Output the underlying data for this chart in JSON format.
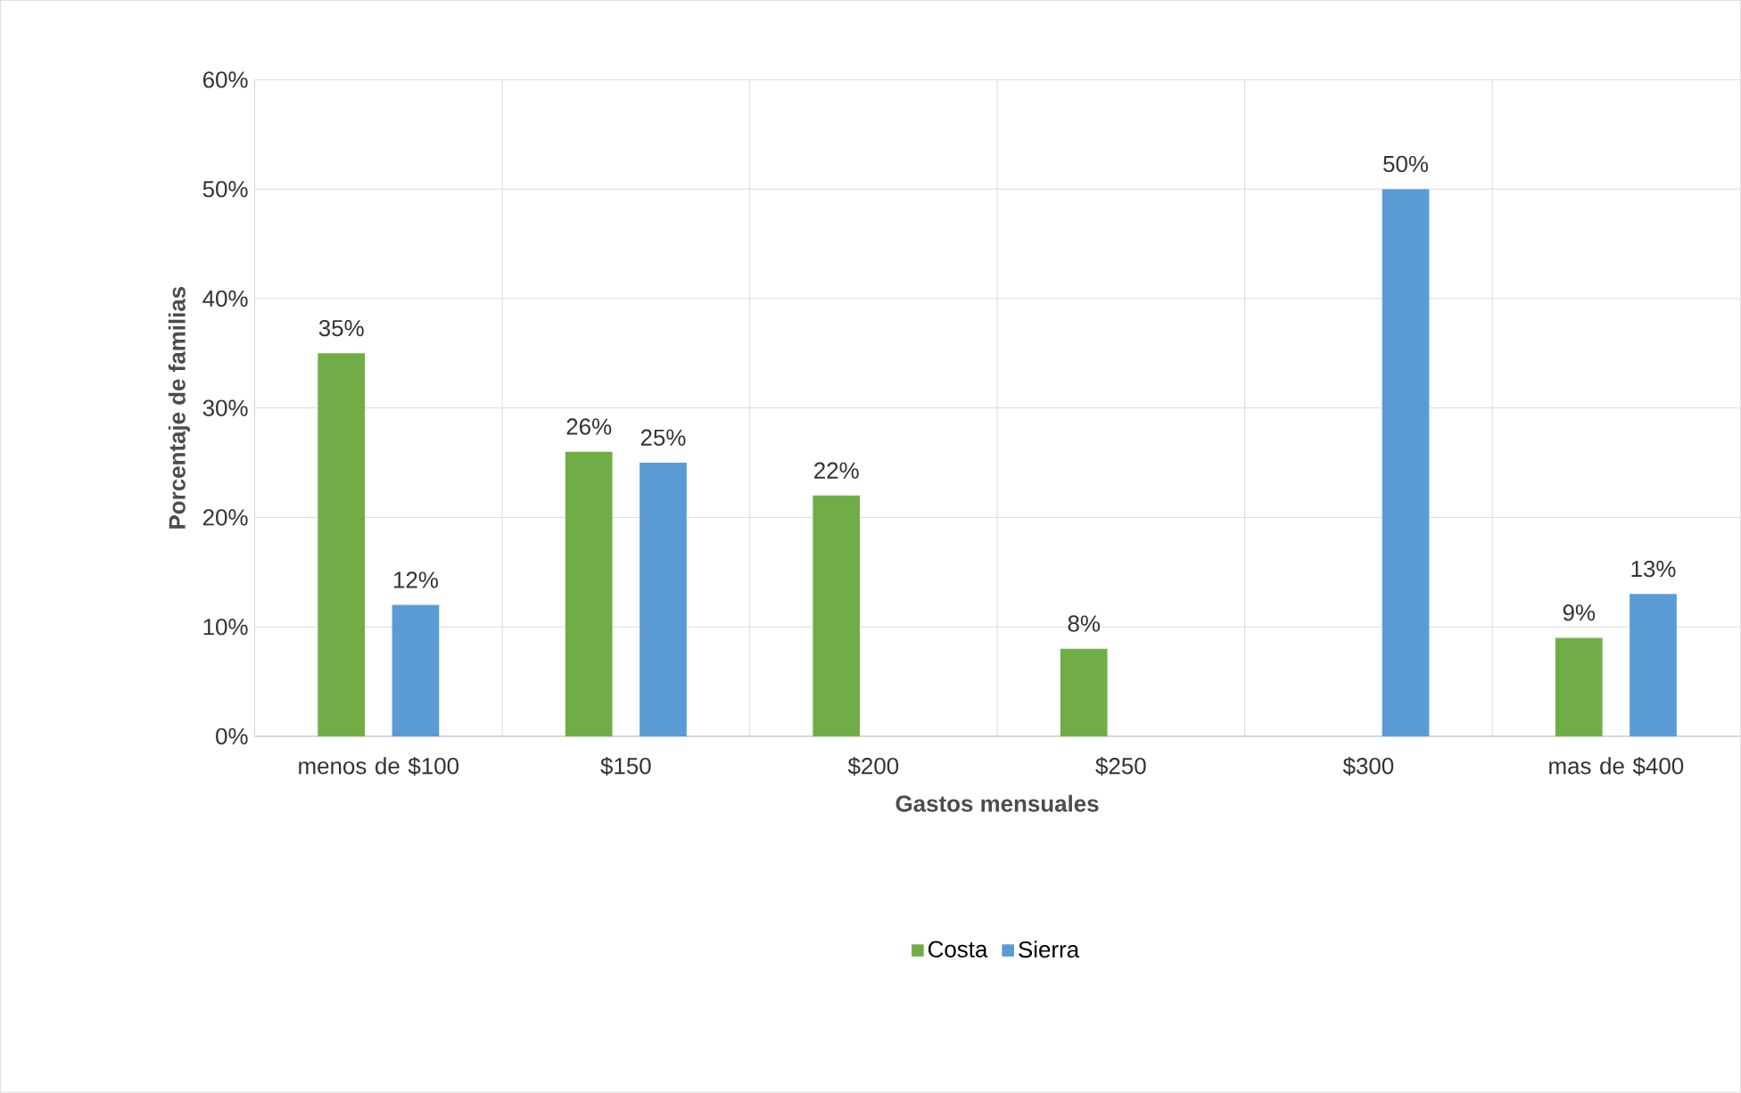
{
  "chart_data": {
    "type": "bar",
    "xlabel": "Gastos mensuales",
    "ylabel": "Porcentaje de familias",
    "categories": [
      "menos de $100",
      "$150",
      "$200",
      "$250",
      "$300",
      "mas de $400"
    ],
    "series": [
      {
        "name": "Costa",
        "color": "#70ad47",
        "values": [
          35,
          26,
          22,
          8,
          null,
          9
        ],
        "value_labels": [
          "35%",
          "26%",
          "22%",
          "8%",
          null,
          "9%"
        ]
      },
      {
        "name": "Sierra",
        "color": "#5b9bd5",
        "values": [
          12,
          25,
          null,
          null,
          50,
          13
        ],
        "value_labels": [
          "12%",
          "25%",
          null,
          null,
          "50%",
          "13%"
        ]
      }
    ],
    "ylim": [
      0,
      60
    ],
    "yticks": [
      {
        "value": 0,
        "label": "0%"
      },
      {
        "value": 10,
        "label": "10%"
      },
      {
        "value": 20,
        "label": "20%"
      },
      {
        "value": 30,
        "label": "30%"
      },
      {
        "value": 40,
        "label": "40%"
      },
      {
        "value": 50,
        "label": "50%"
      },
      {
        "value": 60,
        "label": "60%"
      }
    ],
    "grid": true,
    "legend": "bottom"
  }
}
